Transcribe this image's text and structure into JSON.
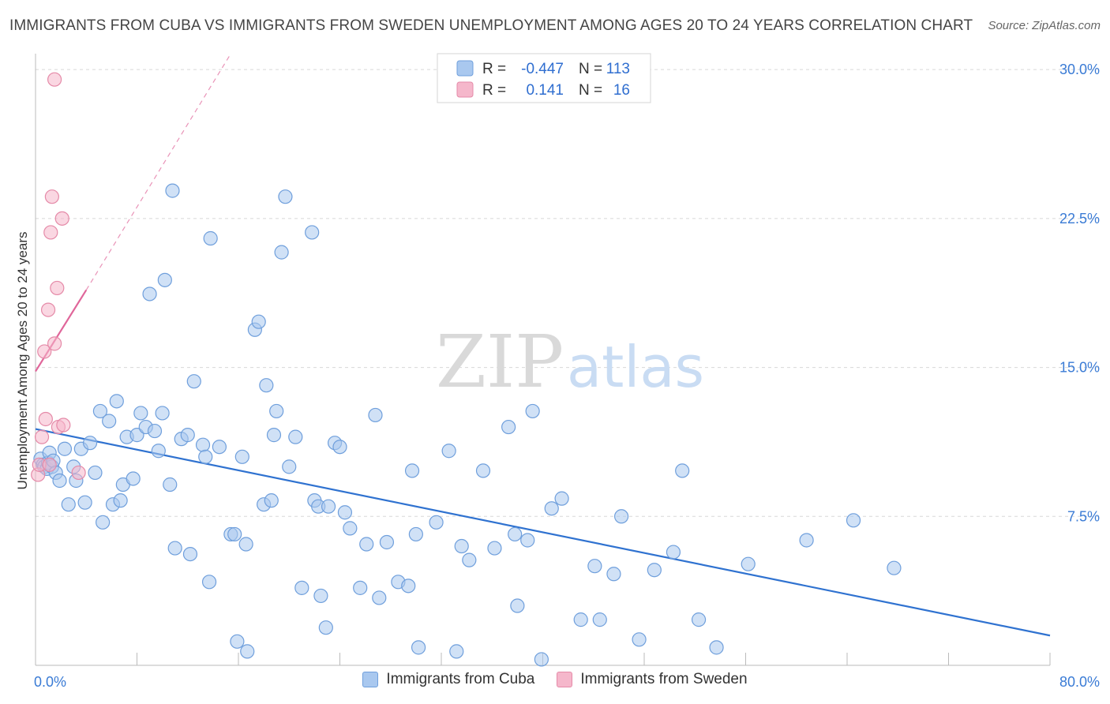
{
  "title": "IMMIGRANTS FROM CUBA VS IMMIGRANTS FROM SWEDEN UNEMPLOYMENT AMONG AGES 20 TO 24 YEARS CORRELATION CHART",
  "source": "Source: ZipAtlas.com",
  "watermark": {
    "zip": "ZIP",
    "atlas": "atlas"
  },
  "colors": {
    "cuba_fill": "#a9c8ef",
    "cuba_stroke": "#6f9fdc",
    "cuba_line": "#2f72d0",
    "sweden_fill": "#f5b7cb",
    "sweden_stroke": "#e58aa8",
    "sweden_line": "#e0669a",
    "tick_label": "#3a7bd5",
    "grid": "#d8d8d8"
  },
  "legend_box": {
    "rows": [
      {
        "r_label": "R =",
        "r_value": "-0.447",
        "n_label": "N =",
        "n_value": "113"
      },
      {
        "r_label": "R =",
        "r_value": "0.141",
        "n_label": "N =",
        "n_value": "16"
      }
    ]
  },
  "bottom_legend": [
    "Immigrants from Cuba",
    "Immigrants from Sweden"
  ],
  "chart_data": {
    "type": "scatter",
    "title": "IMMIGRANTS FROM CUBA VS IMMIGRANTS FROM SWEDEN UNEMPLOYMENT AMONG AGES 20 TO 24 YEARS CORRELATION CHART",
    "xlabel": "",
    "ylabel": "Unemployment Among Ages 20 to 24 years",
    "xlim": [
      0,
      80
    ],
    "ylim": [
      0,
      30.8
    ],
    "x_tick_labels": [
      "0.0%",
      "80.0%"
    ],
    "y_ticks": [
      7.5,
      15.0,
      22.5,
      30.0
    ],
    "y_tick_labels": [
      "7.5%",
      "15.0%",
      "22.5%",
      "30.0%"
    ],
    "grid": true,
    "legend_position": "top-center",
    "series": [
      {
        "name": "Immigrants from Cuba",
        "r": -0.447,
        "n": 113,
        "trend": {
          "x": [
            0,
            80
          ],
          "y": [
            11.9,
            1.5
          ]
        },
        "points": [
          [
            0.4,
            10.4
          ],
          [
            0.6,
            10.1
          ],
          [
            0.7,
            10.0
          ],
          [
            0.9,
            9.9
          ],
          [
            1.0,
            10.2
          ],
          [
            1.1,
            10.7
          ],
          [
            1.3,
            10.0
          ],
          [
            1.4,
            10.3
          ],
          [
            1.6,
            9.7
          ],
          [
            1.9,
            9.3
          ],
          [
            2.3,
            10.9
          ],
          [
            2.6,
            8.1
          ],
          [
            3.0,
            10.0
          ],
          [
            3.2,
            9.3
          ],
          [
            3.6,
            10.9
          ],
          [
            3.9,
            8.2
          ],
          [
            4.3,
            11.2
          ],
          [
            4.7,
            9.7
          ],
          [
            5.1,
            12.8
          ],
          [
            5.3,
            7.2
          ],
          [
            5.8,
            12.3
          ],
          [
            6.1,
            8.1
          ],
          [
            6.4,
            13.3
          ],
          [
            6.7,
            8.3
          ],
          [
            6.9,
            9.1
          ],
          [
            7.2,
            11.5
          ],
          [
            7.7,
            9.4
          ],
          [
            8.0,
            11.6
          ],
          [
            8.3,
            12.7
          ],
          [
            8.7,
            12.0
          ],
          [
            9.0,
            18.7
          ],
          [
            9.4,
            11.8
          ],
          [
            9.7,
            10.8
          ],
          [
            10.0,
            12.7
          ],
          [
            10.2,
            19.4
          ],
          [
            10.6,
            9.1
          ],
          [
            10.8,
            23.9
          ],
          [
            11.0,
            5.9
          ],
          [
            11.5,
            11.4
          ],
          [
            12.0,
            11.6
          ],
          [
            12.2,
            5.6
          ],
          [
            12.5,
            14.3
          ],
          [
            13.2,
            11.1
          ],
          [
            13.4,
            10.5
          ],
          [
            13.7,
            4.2
          ],
          [
            13.8,
            21.5
          ],
          [
            14.5,
            11.0
          ],
          [
            15.4,
            6.6
          ],
          [
            15.7,
            6.6
          ],
          [
            15.9,
            1.2
          ],
          [
            16.3,
            10.5
          ],
          [
            16.7,
            0.7
          ],
          [
            16.6,
            6.1
          ],
          [
            17.3,
            16.9
          ],
          [
            17.6,
            17.3
          ],
          [
            18.0,
            8.1
          ],
          [
            18.2,
            14.1
          ],
          [
            18.6,
            8.3
          ],
          [
            18.8,
            11.6
          ],
          [
            19.0,
            12.8
          ],
          [
            19.4,
            20.8
          ],
          [
            19.7,
            23.6
          ],
          [
            20.0,
            10.0
          ],
          [
            20.5,
            11.5
          ],
          [
            21.0,
            3.9
          ],
          [
            21.8,
            21.8
          ],
          [
            22.0,
            8.3
          ],
          [
            22.3,
            8.0
          ],
          [
            22.5,
            3.5
          ],
          [
            22.9,
            1.9
          ],
          [
            23.1,
            8.0
          ],
          [
            23.6,
            11.2
          ],
          [
            24.0,
            11.0
          ],
          [
            24.4,
            7.7
          ],
          [
            24.8,
            6.9
          ],
          [
            25.6,
            3.9
          ],
          [
            26.1,
            6.1
          ],
          [
            26.8,
            12.6
          ],
          [
            27.1,
            3.4
          ],
          [
            27.7,
            6.2
          ],
          [
            28.6,
            4.2
          ],
          [
            29.4,
            4.0
          ],
          [
            29.7,
            9.8
          ],
          [
            30.0,
            6.6
          ],
          [
            30.2,
            0.9
          ],
          [
            31.6,
            7.2
          ],
          [
            32.6,
            10.8
          ],
          [
            33.2,
            0.7
          ],
          [
            33.6,
            6.0
          ],
          [
            34.2,
            5.3
          ],
          [
            35.3,
            9.8
          ],
          [
            36.2,
            5.9
          ],
          [
            37.3,
            12.0
          ],
          [
            37.8,
            6.6
          ],
          [
            38.0,
            3.0
          ],
          [
            38.8,
            6.3
          ],
          [
            39.2,
            12.8
          ],
          [
            39.9,
            0.3
          ],
          [
            40.7,
            7.9
          ],
          [
            41.5,
            8.4
          ],
          [
            43.0,
            2.3
          ],
          [
            44.1,
            5.0
          ],
          [
            44.5,
            2.3
          ],
          [
            45.6,
            4.6
          ],
          [
            46.2,
            7.5
          ],
          [
            47.6,
            1.3
          ],
          [
            48.8,
            4.8
          ],
          [
            50.3,
            5.7
          ],
          [
            51.0,
            9.8
          ],
          [
            52.3,
            2.3
          ],
          [
            53.7,
            0.9
          ],
          [
            56.2,
            5.1
          ],
          [
            60.8,
            6.3
          ],
          [
            64.5,
            7.3
          ],
          [
            67.7,
            4.9
          ]
        ]
      },
      {
        "name": "Immigrants from Sweden",
        "r": 0.141,
        "n": 16,
        "trend": {
          "x": [
            0,
            4
          ],
          "y": [
            14.8,
            18.9
          ]
        },
        "trend_extended": {
          "x": [
            4,
            15.4
          ],
          "y": [
            18.9,
            30.8
          ]
        },
        "points": [
          [
            0.2,
            9.6
          ],
          [
            0.3,
            10.1
          ],
          [
            0.5,
            11.5
          ],
          [
            0.7,
            15.8
          ],
          [
            0.8,
            12.4
          ],
          [
            1.0,
            17.9
          ],
          [
            1.1,
            10.1
          ],
          [
            1.2,
            21.8
          ],
          [
            1.3,
            23.6
          ],
          [
            1.5,
            16.2
          ],
          [
            1.5,
            29.5
          ],
          [
            1.7,
            19.0
          ],
          [
            1.8,
            12.0
          ],
          [
            2.1,
            22.5
          ],
          [
            2.2,
            12.1
          ],
          [
            3.4,
            9.7
          ]
        ]
      }
    ]
  }
}
